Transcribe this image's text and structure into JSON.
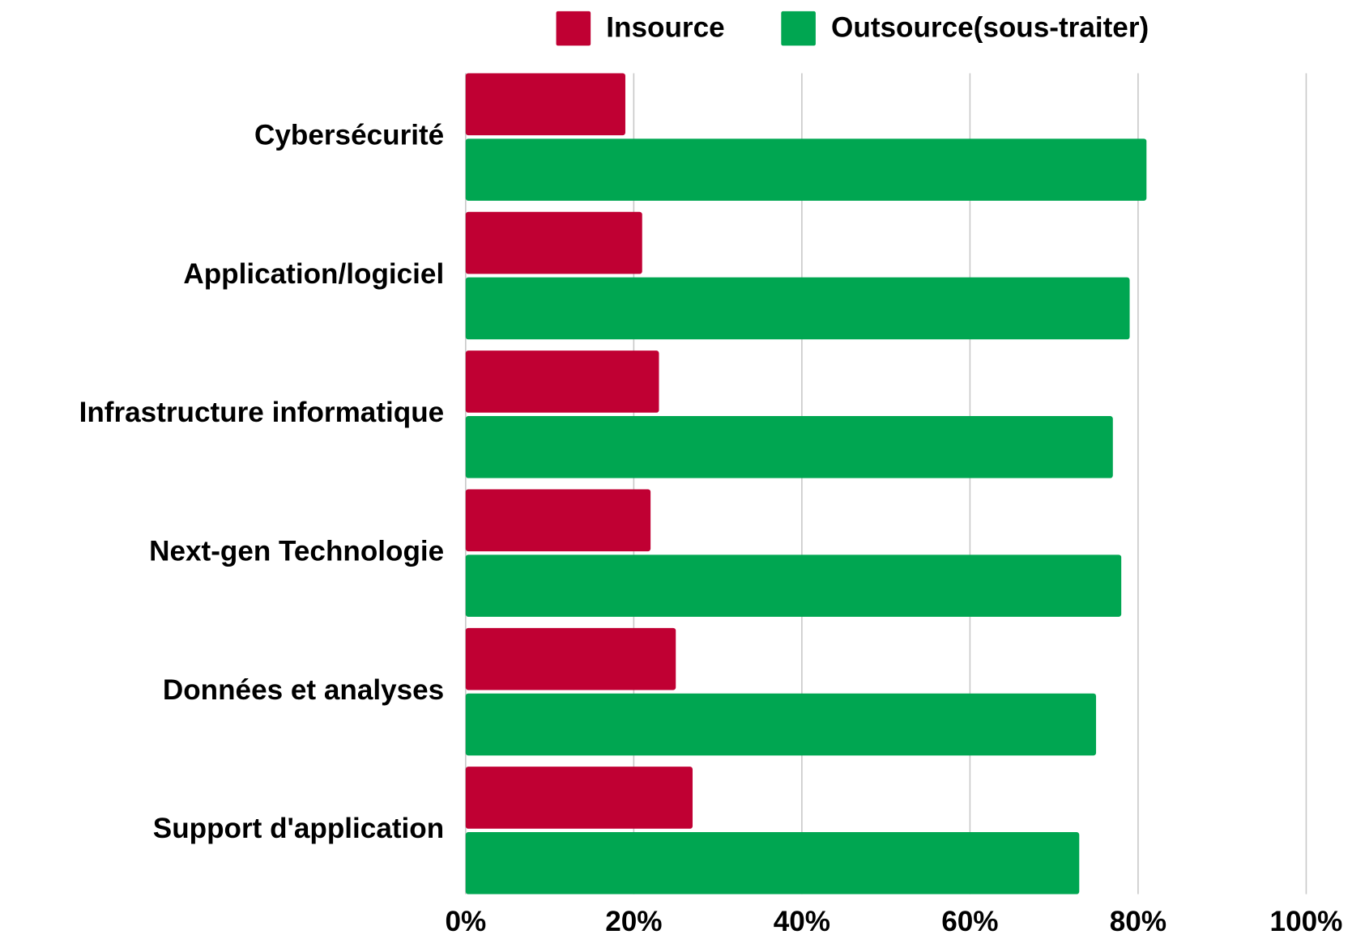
{
  "chart_data": {
    "type": "bar",
    "orientation": "horizontal",
    "categories": [
      "Cybersécurité",
      "Application/logiciel",
      "Infrastructure informatique",
      "Next-gen Technologie",
      "Données et analyses",
      "Support d'application"
    ],
    "series": [
      {
        "name": "Insource",
        "color": "#c00033",
        "values": [
          19,
          21,
          23,
          22,
          25,
          27
        ]
      },
      {
        "name": "Outsource(sous-traiter)",
        "color": "#00a651",
        "values": [
          81,
          79,
          77,
          78,
          75,
          73
        ]
      }
    ],
    "xlim": [
      0,
      100
    ],
    "xticks": [
      {
        "value": 0,
        "label": "0%"
      },
      {
        "value": 20,
        "label": "20%"
      },
      {
        "value": 40,
        "label": "40%"
      },
      {
        "value": 60,
        "label": "60%"
      },
      {
        "value": 80,
        "label": "80%"
      },
      {
        "value": 100,
        "label": "100%"
      }
    ],
    "grid": true,
    "legend": "top"
  }
}
